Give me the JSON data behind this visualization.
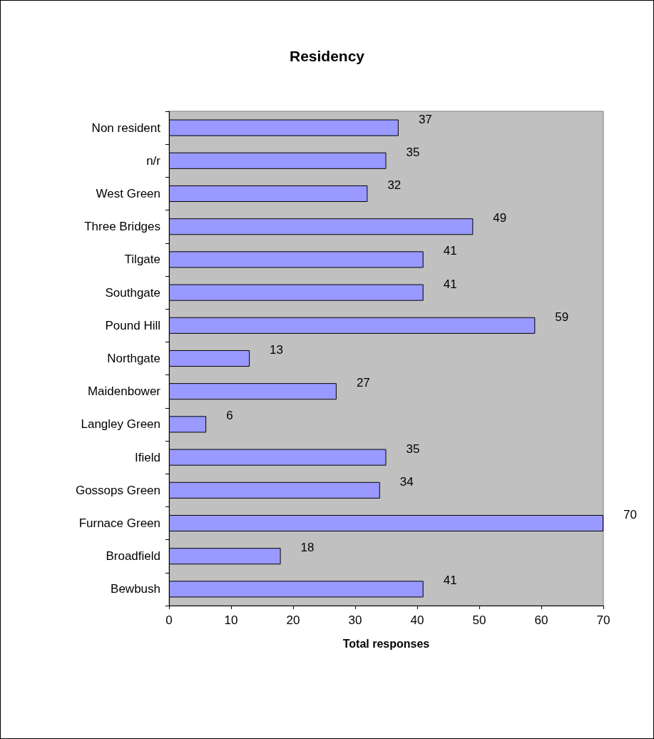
{
  "chart_data": {
    "type": "bar",
    "orientation": "horizontal",
    "title": "Residency",
    "xlabel": "Total responses",
    "categories": [
      "Non resident",
      "n/r",
      "West Green",
      "Three Bridges",
      "Tilgate",
      "Southgate",
      "Pound Hill",
      "Northgate",
      "Maidenbower",
      "Langley Green",
      "Ifield",
      "Gossops Green",
      "Furnace Green",
      "Broadfield",
      "Bewbush"
    ],
    "values": [
      37,
      35,
      32,
      49,
      41,
      41,
      59,
      13,
      27,
      6,
      35,
      34,
      70,
      18,
      41
    ],
    "color": "#9999ff",
    "xlim": [
      0,
      70
    ],
    "xticks": [
      0,
      10,
      20,
      30,
      40,
      50,
      60,
      70
    ],
    "data_labels": true,
    "grid": false
  }
}
